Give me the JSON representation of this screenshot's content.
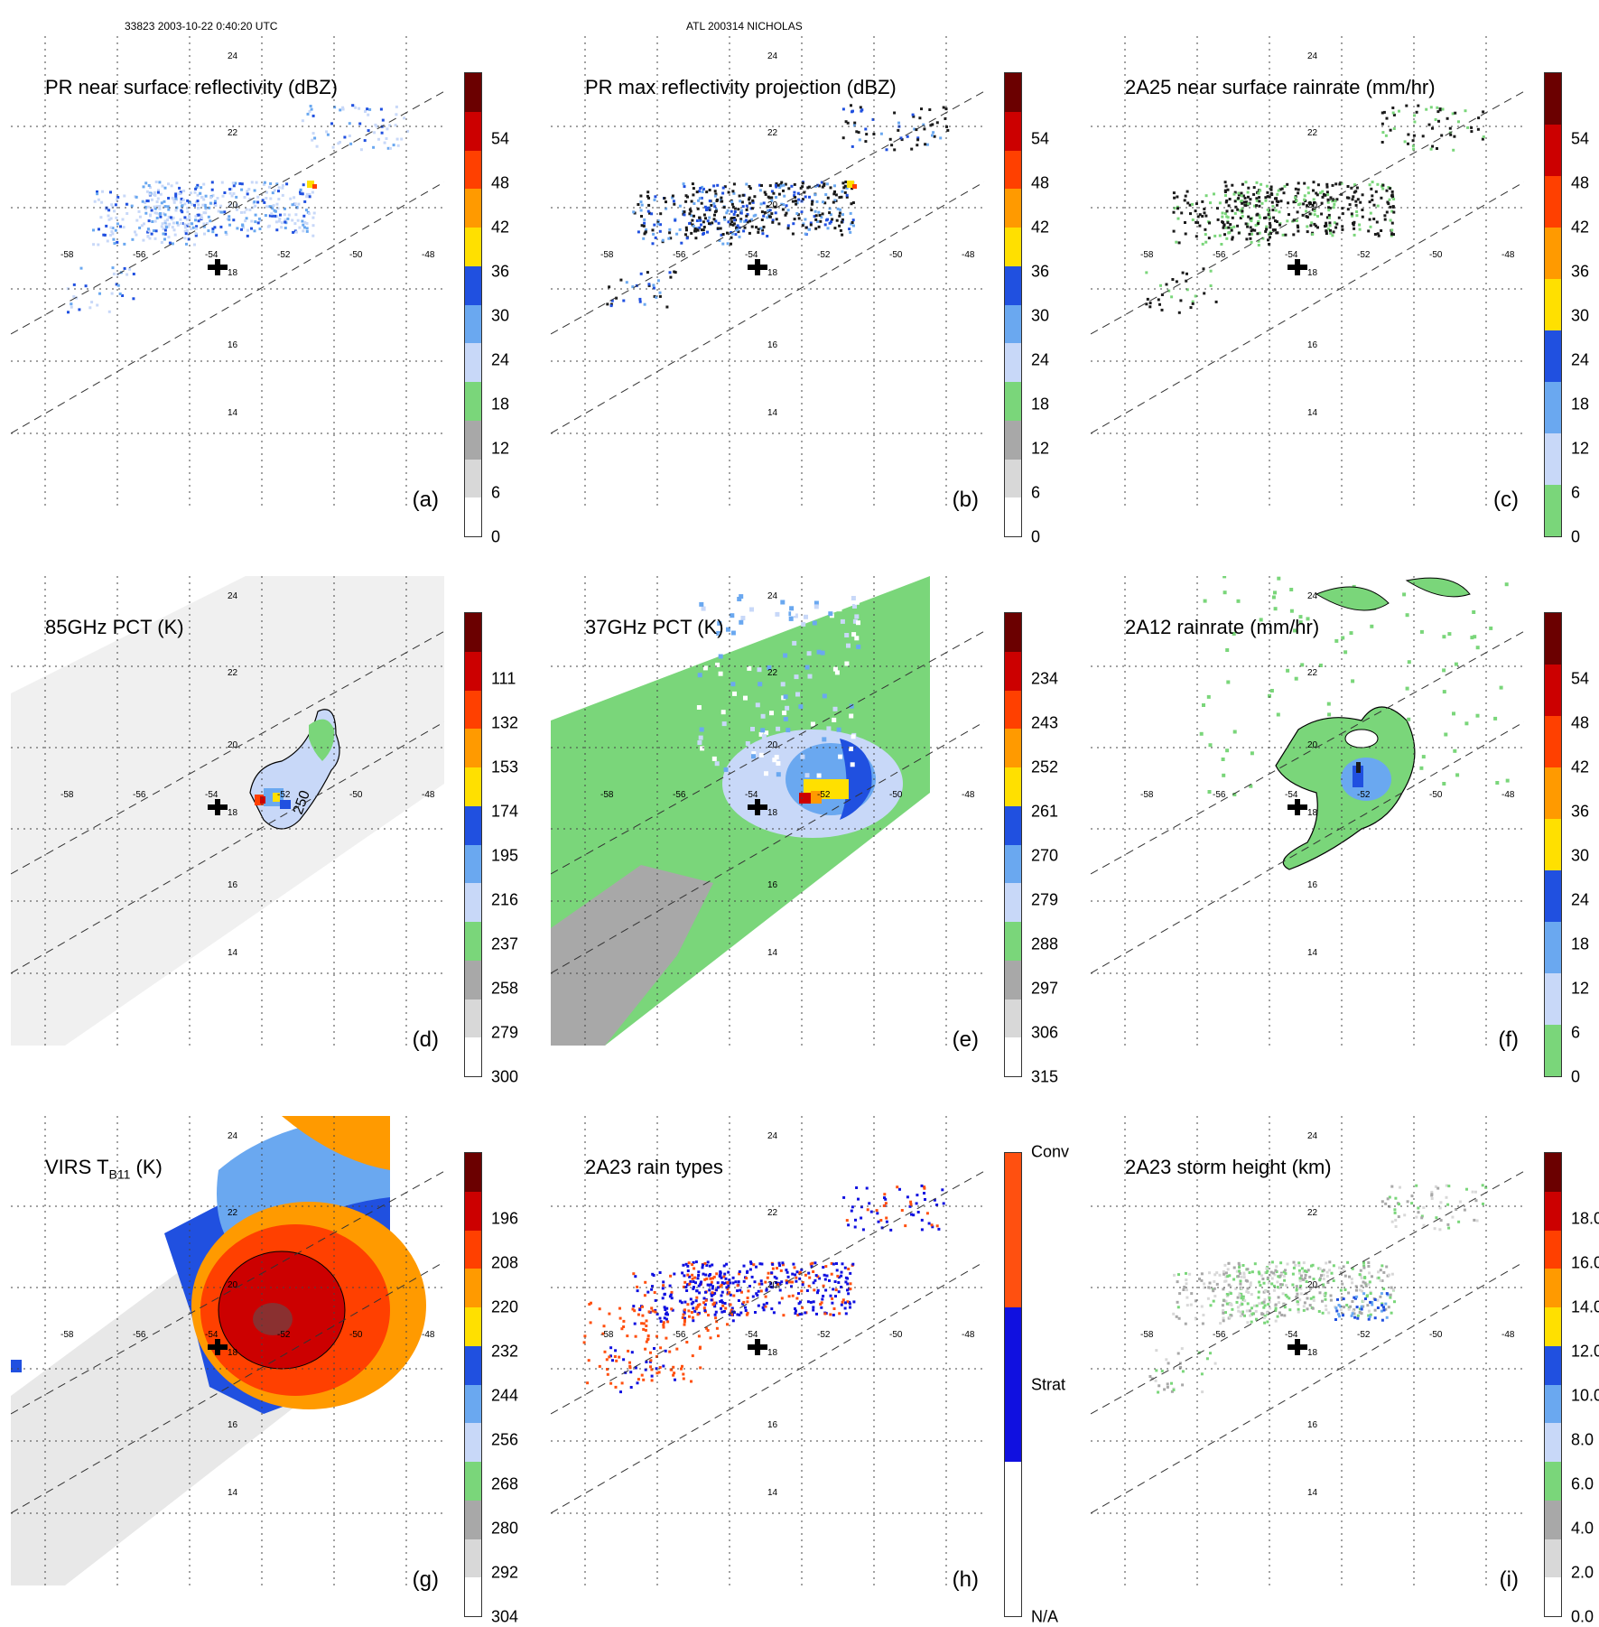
{
  "header": {
    "orbit_time": "33823 2003-10-22 0:40:20 UTC",
    "storm": "ATL 200314 NICHOLAS"
  },
  "lon_labels": [
    "-58",
    "-56",
    "-54",
    "-52",
    "-50",
    "-48"
  ],
  "lat_labels": [
    "14",
    "16",
    "18",
    "20",
    "22",
    "24"
  ],
  "contour_label": "250",
  "panels": [
    {
      "id": "a",
      "title": "PR near surface reflectivity (dBZ)",
      "label": "(a)",
      "ticks": [
        "0",
        "6",
        "12",
        "18",
        "24",
        "30",
        "36",
        "42",
        "48",
        "54"
      ],
      "colors": [
        "#ffffff",
        "#d8d8d8",
        "#a8a8a8",
        "#7ad67a",
        "#c8d8f8",
        "#6aa8f0",
        "#2050e0",
        "#ffe000",
        "#ff9a00",
        "#ff4000",
        "#cc0000",
        "#6b0000"
      ],
      "field": "pr"
    },
    {
      "id": "b",
      "title": "PR max reflectivity projection (dBZ)",
      "label": "(b)",
      "ticks": [
        "0",
        "6",
        "12",
        "18",
        "24",
        "30",
        "36",
        "42",
        "48",
        "54"
      ],
      "colors": [
        "#ffffff",
        "#d8d8d8",
        "#a8a8a8",
        "#7ad67a",
        "#c8d8f8",
        "#6aa8f0",
        "#2050e0",
        "#ffe000",
        "#ff9a00",
        "#ff4000",
        "#cc0000",
        "#6b0000"
      ],
      "field": "prmax"
    },
    {
      "id": "c",
      "title": "2A25 near surface rainrate (mm/hr)",
      "label": "(c)",
      "ticks": [
        "0",
        "6",
        "12",
        "18",
        "24",
        "30",
        "36",
        "42",
        "48",
        "54"
      ],
      "colors": [
        "#7ad67a",
        "#c8d8f8",
        "#6aa8f0",
        "#2050e0",
        "#ffe000",
        "#ff9a00",
        "#ff4000",
        "#cc0000",
        "#6b0000"
      ],
      "field": "rain"
    },
    {
      "id": "d",
      "title": "85GHz PCT (K)",
      "label": "(d)",
      "ticks": [
        "300",
        "279",
        "258",
        "237",
        "216",
        "195",
        "174",
        "153",
        "132",
        "111"
      ],
      "colors": [
        "#ffffff",
        "#d8d8d8",
        "#a8a8a8",
        "#7ad67a",
        "#c8d8f8",
        "#6aa8f0",
        "#2050e0",
        "#ffe000",
        "#ff9a00",
        "#ff4000",
        "#cc0000",
        "#6b0000"
      ],
      "field": "pct85"
    },
    {
      "id": "e",
      "title": "37GHz PCT (K)",
      "label": "(e)",
      "ticks": [
        "315",
        "306",
        "297",
        "288",
        "279",
        "270",
        "261",
        "252",
        "243",
        "234"
      ],
      "colors": [
        "#ffffff",
        "#d8d8d8",
        "#a8a8a8",
        "#7ad67a",
        "#c8d8f8",
        "#6aa8f0",
        "#2050e0",
        "#ffe000",
        "#ff9a00",
        "#ff4000",
        "#cc0000",
        "#6b0000"
      ],
      "field": "pct37"
    },
    {
      "id": "f",
      "title": "2A12 rainrate (mm/hr)",
      "label": "(f)",
      "ticks": [
        "0",
        "6",
        "12",
        "18",
        "24",
        "30",
        "36",
        "42",
        "48",
        "54"
      ],
      "colors": [
        "#7ad67a",
        "#c8d8f8",
        "#6aa8f0",
        "#2050e0",
        "#ffe000",
        "#ff9a00",
        "#ff4000",
        "#cc0000",
        "#6b0000"
      ],
      "field": "tmi"
    },
    {
      "id": "g",
      "title": "VIRS T",
      "title_sub": "B11",
      "title_suffix": " (K)",
      "label": "(g)",
      "ticks": [
        "304",
        "292",
        "280",
        "268",
        "256",
        "244",
        "232",
        "220",
        "208",
        "196"
      ],
      "colors": [
        "#ffffff",
        "#d8d8d8",
        "#a8a8a8",
        "#7ad67a",
        "#c8d8f8",
        "#6aa8f0",
        "#2050e0",
        "#ffe000",
        "#ff9a00",
        "#ff4000",
        "#cc0000",
        "#6b0000"
      ],
      "field": "virs"
    },
    {
      "id": "h",
      "title": "2A23 rain types",
      "label": "(h)",
      "ticks": [
        "N/A",
        "Strat",
        "Conv"
      ],
      "colors": [
        "#ffffff",
        "#1010e0",
        "#ff5010"
      ],
      "field": "types"
    },
    {
      "id": "i",
      "title": "2A23 storm height (km)",
      "label": "(i)",
      "ticks": [
        "0.0",
        "2.0",
        "4.0",
        "6.0",
        "8.0",
        "10.0",
        "12.0",
        "14.0",
        "16.0",
        "18.0"
      ],
      "colors": [
        "#ffffff",
        "#d8d8d8",
        "#a8a8a8",
        "#7ad67a",
        "#c8d8f8",
        "#6aa8f0",
        "#2050e0",
        "#ffe000",
        "#ff9a00",
        "#ff4000",
        "#cc0000",
        "#6b0000"
      ],
      "field": "height"
    }
  ]
}
